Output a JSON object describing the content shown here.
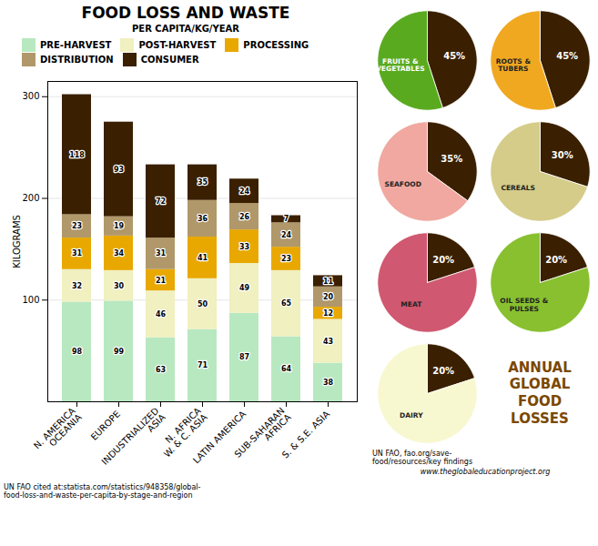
{
  "chart_data": [
    {
      "type": "bar",
      "title": "FOOD LOSS AND WASTE",
      "subtitle": "PER CAPITA/KG/YEAR",
      "y_label": "KILOGRAMS",
      "categories": [
        "N. AMERICA\nOCEANIA",
        "EUROPE",
        "INDUSTRIALIZED\nASIA",
        "N. AFRICA\nW. & C. ASIA",
        "LATIN AMERICA",
        "SUB-SAHARAN\nAFRICA",
        "S. & S.E. ASIA"
      ],
      "series": [
        {
          "name": "PRE-HARVEST",
          "color": "#b8e8c0",
          "values": [
            98,
            99,
            63,
            71,
            87,
            64,
            38
          ]
        },
        {
          "name": "POST-HARVEST",
          "color": "#f0f0c0",
          "values": [
            32,
            30,
            46,
            50,
            49,
            65,
            43
          ]
        },
        {
          "name": "PROCESSING",
          "color": "#e8a800",
          "values": [
            31,
            34,
            21,
            41,
            33,
            23,
            12
          ]
        },
        {
          "name": "DISTRIBUTION",
          "color": "#b0986a",
          "values": [
            23,
            19,
            31,
            36,
            26,
            24,
            20
          ]
        },
        {
          "name": "CONSUMER",
          "color": "#3a2000",
          "values": [
            118,
            93,
            72,
            35,
            24,
            7,
            11
          ]
        }
      ],
      "stacked": true,
      "ylim": [
        0,
        315
      ],
      "yticks": [
        100,
        200,
        300
      ],
      "grid": true,
      "data_labels": true,
      "legend": "top",
      "annotations": [
        "UN FAO cited at:statista.com/statistics/948358/global-\nfood-loss-and-waste-per-capita-by-stage-and-region"
      ]
    },
    {
      "type": "pie",
      "title": "ANNUAL\nGLOBAL\nFOOD\nLOSSES",
      "color": "#7a4800",
      "data_labels": true,
      "annotations": [
        "UN FAO, fao.org/save-\nfood/resources/key findings",
        "www.theglobaleducationproject.org"
      ],
      "pies": [
        {
          "categories": [
            null,
            "FRUITS &\nVEGETABLES"
          ],
          "values": [
            45,
            55
          ],
          "value_labels": [
            "45%",
            null
          ],
          "colors": [
            "#3a2000",
            "#5aaa20"
          ]
        },
        {
          "categories": [
            null,
            "ROOTS &\nTUBERS"
          ],
          "values": [
            45,
            55
          ],
          "value_labels": [
            "45%",
            null
          ],
          "colors": [
            "#3a2000",
            "#f0a820"
          ]
        },
        {
          "categories": [
            null,
            "SEAFOOD"
          ],
          "values": [
            35,
            65
          ],
          "value_labels": [
            "35%",
            null
          ],
          "colors": [
            "#3a2000",
            "#f0a8a0"
          ]
        },
        {
          "categories": [
            null,
            "CEREALS"
          ],
          "values": [
            30,
            70
          ],
          "value_labels": [
            "30%",
            null
          ],
          "colors": [
            "#3a2000",
            "#d4cc88"
          ]
        },
        {
          "categories": [
            null,
            "MEAT"
          ],
          "values": [
            20,
            80
          ],
          "value_labels": [
            "20%",
            null
          ],
          "colors": [
            "#3a2000",
            "#d05870"
          ]
        },
        {
          "categories": [
            null,
            "OIL SEEDS &\nPULSES"
          ],
          "values": [
            20,
            80
          ],
          "value_labels": [
            "20%",
            null
          ],
          "colors": [
            "#3a2000",
            "#88c030"
          ]
        },
        {
          "categories": [
            null,
            "DAIRY"
          ],
          "values": [
            20,
            80
          ],
          "value_labels": [
            "20%",
            null
          ],
          "colors": [
            "#3a2000",
            "#f8f8d0"
          ]
        }
      ]
    }
  ]
}
